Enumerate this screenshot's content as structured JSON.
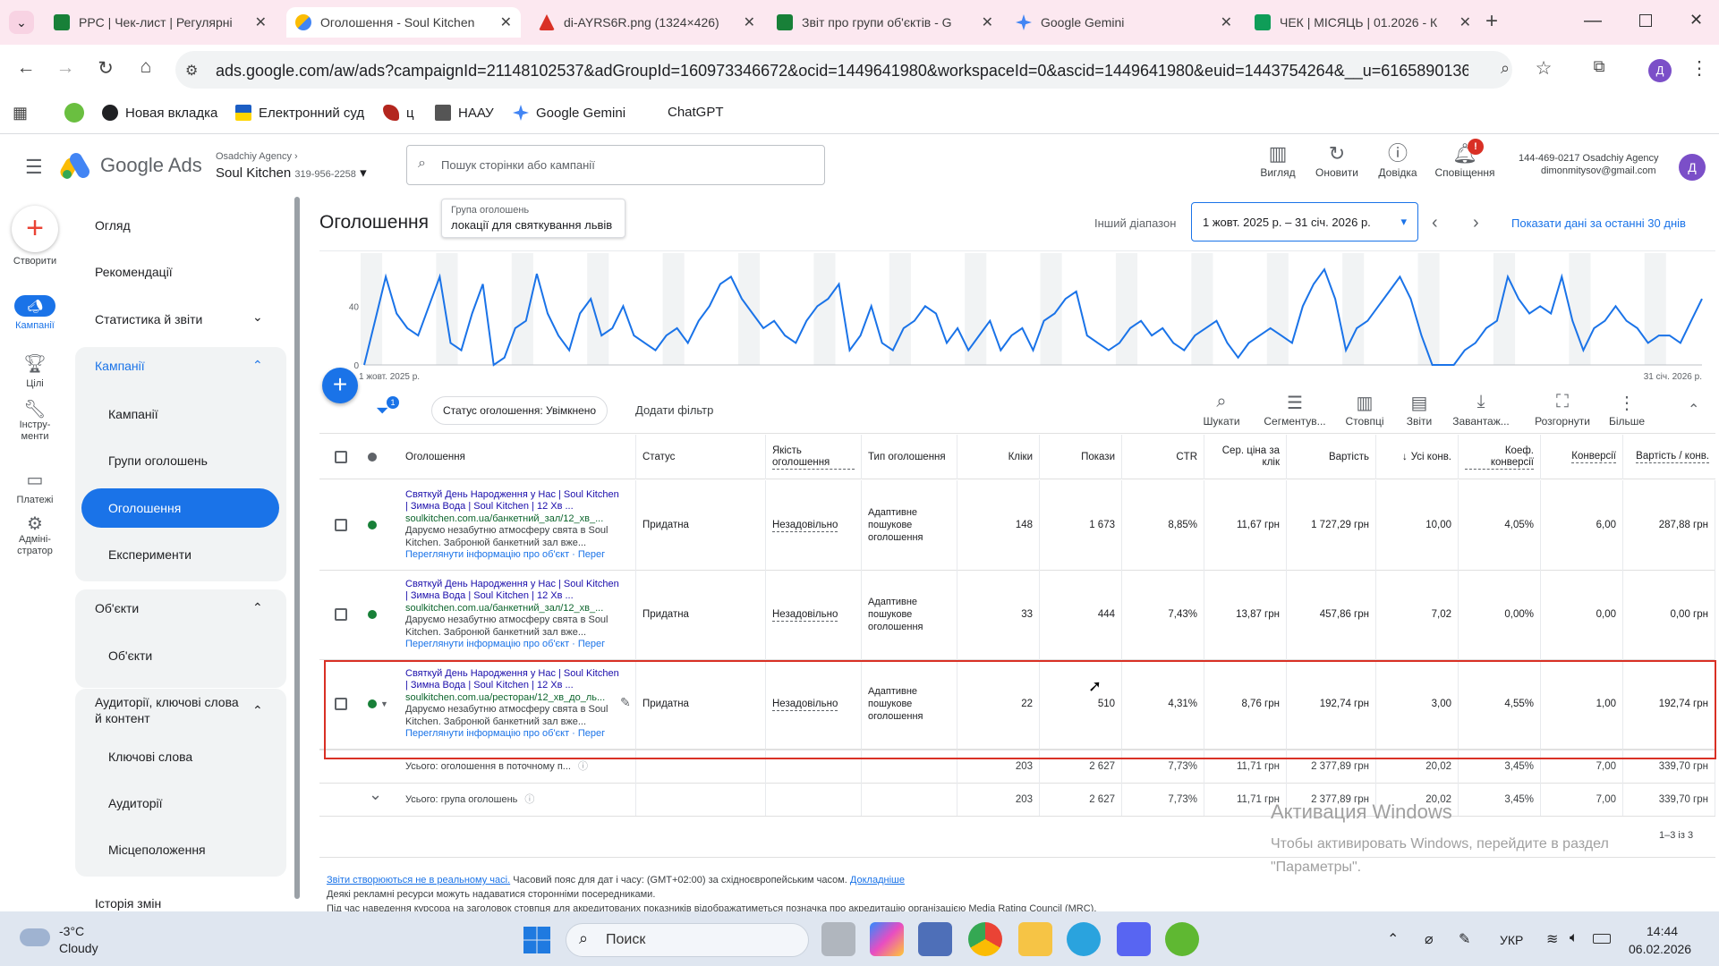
{
  "browser": {
    "tabs": [
      {
        "title": "PPC | Чек-лист | Регулярні",
        "color": "#188038"
      },
      {
        "title": "Оголошення - Soul Kitchen",
        "color": "#fbbc04",
        "active": true
      },
      {
        "title": "di-AYRS6R.png (1324×426)",
        "color": "#d93025"
      },
      {
        "title": "Звіт про групи об'єктів - G",
        "color": "#188038"
      },
      {
        "title": "Google Gemini",
        "color": "#4285f4"
      },
      {
        "title": "ЧЕК | МІСЯЦЬ | 01.2026 - К",
        "color": "#0f9d58"
      }
    ],
    "url": "ads.google.com/aw/ads?campaignId=21148102537&adGroupId=160973346672&ocid=1449641980&workspaceId=0&ascid=1449641980&euid=1443754264&__u=6165890136&us...",
    "bookmarks": [
      "Новая вкладка",
      "Електронний суд",
      "ц",
      "НААУ",
      "Google Gemini",
      "ChatGPT"
    ],
    "profile": "Д"
  },
  "header": {
    "logo": "Google Ads",
    "agency": "Osadchiy Agency",
    "account": "Soul Kitchen",
    "account_id": "319-956-2258",
    "search_placeholder": "Пошук сторінки або кампанії",
    "buttons": [
      "Вигляд",
      "Оновити",
      "Довідка",
      "Сповіщення"
    ],
    "notif_count": "!",
    "user_id": "144-469-0217 Osadchiy Agency",
    "user_email": "dimonmitysov@gmail.com",
    "avatar": "Д"
  },
  "rail": [
    "Створити",
    "Кампанії",
    "Цілі",
    "Інстру-\nменти",
    "Платежі",
    "Адміні-\nстратор"
  ],
  "nav": {
    "overview": "Огляд",
    "recs": "Рекомендації",
    "stats": "Статистика й звіти",
    "campaigns_hdr": "Кампанії",
    "campaigns": "Кампанії",
    "adgroups": "Групи оголошень",
    "ads": "Оголошення",
    "experiments": "Експерименти",
    "assets_hdr": "Об'єкти",
    "assets": "Об'єкти",
    "audiences_hdr": "Аудиторії, ключові слова й контент",
    "keywords": "Ключові слова",
    "audiences": "Аудиторії",
    "locations": "Місцеположення",
    "history": "Історія змін"
  },
  "main": {
    "title": "Оголошення",
    "tooltip_label": "Група оголошень",
    "tooltip_value": "локації для святкування львів",
    "range_label": "Інший діапазон",
    "date_range": "1 жовт. 2025 р. – 31 січ. 2026 р.",
    "show_last": "Показати дані за останні 30 днів",
    "filter_count": "1",
    "filter_chip": "Статус оголошення: Увімкнено",
    "add_filter": "Додати фільтр",
    "tools": [
      "Шукати",
      "Сегментув...",
      "Стовпці",
      "Звіти",
      "Завантаж...",
      "Розгорнути",
      "Більше"
    ]
  },
  "chart_data": {
    "type": "line",
    "y_ticks": [
      0,
      40
    ],
    "x_start": "1 жовт. 2025 р.",
    "x_end": "31 січ. 2026 р.",
    "values": [
      0,
      30,
      60,
      35,
      25,
      20,
      40,
      60,
      15,
      10,
      35,
      55,
      0,
      5,
      25,
      30,
      62,
      35,
      20,
      10,
      35,
      45,
      20,
      25,
      40,
      20,
      15,
      10,
      20,
      25,
      15,
      30,
      40,
      55,
      60,
      45,
      35,
      25,
      30,
      20,
      15,
      30,
      40,
      45,
      55,
      10,
      20,
      40,
      15,
      10,
      25,
      30,
      40,
      35,
      15,
      25,
      10,
      20,
      30,
      10,
      20,
      25,
      10,
      30,
      35,
      45,
      50,
      20,
      15,
      10,
      15,
      25,
      30,
      20,
      25,
      15,
      10,
      20,
      25,
      30,
      15,
      5,
      15,
      20,
      25,
      20,
      15,
      40,
      55,
      65,
      45,
      10,
      25,
      30,
      40,
      50,
      60,
      45,
      20,
      0,
      0,
      0,
      10,
      15,
      25,
      30,
      60,
      45,
      35,
      40,
      35,
      60,
      30,
      10,
      25,
      30,
      40,
      30,
      25,
      15,
      20,
      20,
      15,
      30,
      45
    ],
    "ylim": [
      0,
      70
    ]
  },
  "table": {
    "headers": {
      "ad": "Оголошення",
      "status": "Статус",
      "quality": "Якість оголошення",
      "type": "Тип оголошення",
      "clicks": "Кліки",
      "impr": "Покази",
      "ctr": "CTR",
      "cpc": "Сер. ціна за клік",
      "cost": "Вартість",
      "conv_all": "Усі конв.",
      "conv_rate": "Коеф. конверсії",
      "conv": "Конверсії",
      "cost_conv": "Вартість / конв."
    },
    "rows": [
      {
        "headline": "Святкуй День Народження у Нас | Soul Kitchen | Зимна Вода | Soul Kitchen | 12 Хв ...",
        "url": "soulkitchen.com.ua/банкетний_зал/12_хв_...",
        "desc": "Даруємо незабутню атмосферу свята в Soul Kitchen. Забронюй банкетний зал вже...",
        "info": "Переглянути інформацію про об'єкт · Перег",
        "status": "Придатна",
        "quality": "Незадовільно",
        "type": "Адаптивне пошукове оголошення",
        "clicks": "148",
        "impr": "1 673",
        "ctr": "8,85%",
        "cpc": "11,67 грн",
        "cost": "1 727,29 грн",
        "conv_all": "10,00",
        "conv_rate": "4,05%",
        "conv": "6,00",
        "cost_conv": "287,88 грн"
      },
      {
        "headline": "Святкуй День Народження у Нас | Soul Kitchen | Зимна Вода | Soul Kitchen | 12 Хв ...",
        "url": "soulkitchen.com.ua/банкетний_зал/12_хв_...",
        "desc": "Даруємо незабутню атмосферу свята в Soul Kitchen. Забронюй банкетний зал вже...",
        "info": "Переглянути інформацію про об'єкт · Перег",
        "status": "Придатна",
        "quality": "Незадовільно",
        "type": "Адаптивне пошукове оголошення",
        "clicks": "33",
        "impr": "444",
        "ctr": "7,43%",
        "cpc": "13,87 грн",
        "cost": "457,86 грн",
        "conv_all": "7,02",
        "conv_rate": "0,00%",
        "conv": "0,00",
        "cost_conv": "0,00 грн"
      },
      {
        "headline": "Святкуй День Народження у Нас | Soul Kitchen | Зимна Вода | Soul Kitchen | 12 Хв ...",
        "url": "soulkitchen.com.ua/ресторан/12_хв_до_ль...",
        "desc": "Даруємо незабутню атмосферу свята в Soul Kitchen. Забронюй банкетний зал вже...",
        "info": "Переглянути інформацію про об'єкт · Перег",
        "status": "Придатна",
        "quality": "Незадовільно",
        "type": "Адаптивне пошукове оголошення",
        "clicks": "22",
        "impr": "510",
        "ctr": "4,31%",
        "cpc": "8,76 грн",
        "cost": "192,74 грн",
        "conv_all": "3,00",
        "conv_rate": "4,55%",
        "conv": "1,00",
        "cost_conv": "192,74 грн"
      }
    ],
    "total1": {
      "label": "Усього: оголошення в поточному п...",
      "clicks": "203",
      "impr": "2 627",
      "ctr": "7,73%",
      "cpc": "11,71 грн",
      "cost": "2 377,89 грн",
      "conv_all": "20,02",
      "conv_rate": "3,45%",
      "conv": "7,00",
      "cost_conv": "339,70 грн"
    },
    "total2": {
      "label": "Усього: група оголошень",
      "clicks": "203",
      "impr": "2 627",
      "ctr": "7,73%",
      "cpc": "11,71 грн",
      "cost": "2 377,89 грн",
      "conv_all": "20,02",
      "conv_rate": "3,45%",
      "conv": "7,00",
      "cost_conv": "339,70 грн"
    },
    "pagination": "1–3 із 3"
  },
  "footer": {
    "link": "Звіти створюються не в реальному часі.",
    "tz": " Часовий пояс для дат і часу: (GMT+02:00) за східноєвропейським часом.",
    "more": "Докладніше",
    "line2": "Деякі рекламні ресурси можуть надаватися сторонніми посередниками.",
    "line3": "Під час наведення курсора на заголовок стовпця для акредитованих показників відображатиметься позначка про акредитацію організацією Media Rating Council (MRC)."
  },
  "watermark": {
    "title": "Активация Windows",
    "text": "Чтобы активировать Windows, перейдите в раздел \"Параметры\"."
  },
  "taskbar": {
    "temp": "-3°C",
    "weather": "Cloudy",
    "search": "Поиск",
    "lang": "УКР",
    "time": "14:44",
    "date": "06.02.2026"
  }
}
